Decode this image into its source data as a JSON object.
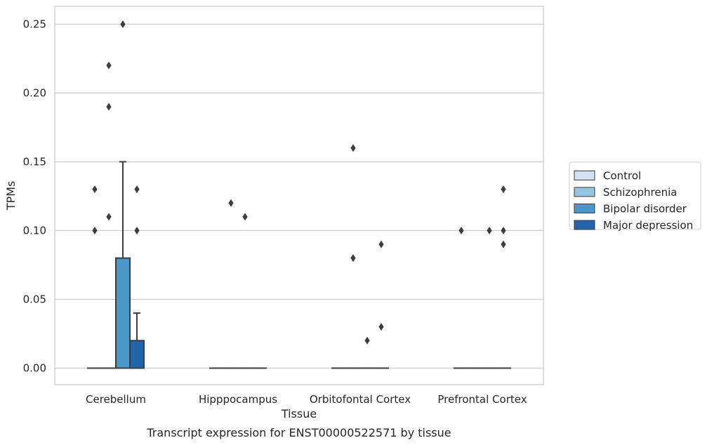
{
  "chart_data": {
    "type": "box",
    "xlabel": "Tissue",
    "ylabel": "TPMs",
    "caption": "Transcript expression for ENST00000522571 by tissue",
    "ylim": [
      -0.012,
      0.263
    ],
    "yticks": [
      "0.00",
      "0.05",
      "0.10",
      "0.15",
      "0.20",
      "0.25"
    ],
    "grid": "horizontal",
    "legend_placement": "right",
    "categories": [
      "Cerebellum",
      "Hipppocampus",
      "Orbitofontal Cortex",
      "Prefrontal Cortex"
    ],
    "series": [
      {
        "name": "Control",
        "color": "#d0e1f2",
        "boxes": [
          {
            "q1": 0,
            "median": 0,
            "q3": 0,
            "whisker_low": 0,
            "whisker_high": 0,
            "outliers": [
              0.1,
              0.13
            ]
          },
          {
            "q1": 0,
            "median": 0,
            "q3": 0,
            "whisker_low": 0,
            "whisker_high": 0,
            "outliers": []
          },
          {
            "q1": 0,
            "median": 0,
            "q3": 0,
            "whisker_low": 0,
            "whisker_high": 0,
            "outliers": []
          },
          {
            "q1": 0,
            "median": 0,
            "q3": 0,
            "whisker_low": 0,
            "whisker_high": 0,
            "outliers": [
              0.1
            ]
          }
        ]
      },
      {
        "name": "Schizophrenia",
        "color": "#94c4df",
        "boxes": [
          {
            "q1": 0,
            "median": 0,
            "q3": 0,
            "whisker_low": 0,
            "whisker_high": 0,
            "outliers": [
              0.11,
              0.19,
              0.22
            ]
          },
          {
            "q1": 0,
            "median": 0,
            "q3": 0,
            "whisker_low": 0,
            "whisker_high": 0,
            "outliers": [
              0.12
            ]
          },
          {
            "q1": 0,
            "median": 0,
            "q3": 0,
            "whisker_low": 0,
            "whisker_high": 0,
            "outliers": [
              0.08,
              0.16
            ]
          },
          {
            "q1": 0,
            "median": 0,
            "q3": 0,
            "whisker_low": 0,
            "whisker_high": 0,
            "outliers": []
          }
        ]
      },
      {
        "name": "Bipolar disorder",
        "color": "#4a98c9",
        "boxes": [
          {
            "q1": 0,
            "median": 0,
            "q3": 0.08,
            "whisker_low": 0,
            "whisker_high": 0.15,
            "outliers": [
              0.25
            ]
          },
          {
            "q1": 0,
            "median": 0,
            "q3": 0,
            "whisker_low": 0,
            "whisker_high": 0,
            "outliers": [
              0.11
            ]
          },
          {
            "q1": 0,
            "median": 0,
            "q3": 0,
            "whisker_low": 0,
            "whisker_high": 0,
            "outliers": [
              0.02
            ]
          },
          {
            "q1": 0,
            "median": 0,
            "q3": 0,
            "whisker_low": 0,
            "whisker_high": 0,
            "outliers": [
              0.1
            ]
          }
        ]
      },
      {
        "name": "Major depression",
        "color": "#2164ab",
        "boxes": [
          {
            "q1": 0,
            "median": 0,
            "q3": 0.02,
            "whisker_low": 0,
            "whisker_high": 0.04,
            "outliers": [
              0.1,
              0.13
            ]
          },
          {
            "q1": 0,
            "median": 0,
            "q3": 0,
            "whisker_low": 0,
            "whisker_high": 0,
            "outliers": []
          },
          {
            "q1": 0,
            "median": 0,
            "q3": 0,
            "whisker_low": 0,
            "whisker_high": 0,
            "outliers": [
              0.03,
              0.09
            ]
          },
          {
            "q1": 0,
            "median": 0,
            "q3": 0,
            "whisker_low": 0,
            "whisker_high": 0,
            "outliers": [
              0.09,
              0.1,
              0.13
            ]
          }
        ]
      }
    ]
  }
}
